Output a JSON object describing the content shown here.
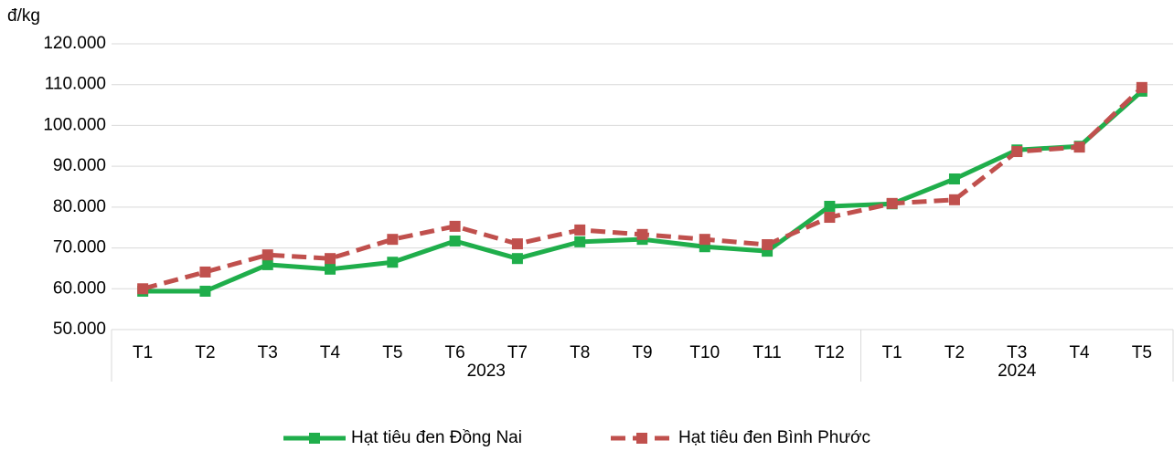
{
  "chart_data": {
    "type": "line",
    "y_axis_label": "đ/kg",
    "category_groups": [
      {
        "name": "2023",
        "categories": [
          "T1",
          "T2",
          "T3",
          "T4",
          "T5",
          "T6",
          "T7",
          "T8",
          "T9",
          "T10",
          "T11",
          "T12"
        ]
      },
      {
        "name": "2024",
        "categories": [
          "T1",
          "T2",
          "T3",
          "T4",
          "T5"
        ]
      }
    ],
    "series": [
      {
        "name": "Hạt tiêu đen Đồng Nai",
        "color": "#1fae4b",
        "dash": false,
        "values": [
          59400,
          59400,
          65900,
          64800,
          66500,
          71700,
          67400,
          71500,
          72100,
          70300,
          69200,
          80200,
          80800,
          86900,
          94000,
          94900,
          108400
        ]
      },
      {
        "name": "Hạt tiêu đen Bình Phước",
        "color": "#c0504d",
        "dash": true,
        "values": [
          60000,
          64100,
          68300,
          67400,
          72100,
          75300,
          71000,
          74400,
          73300,
          72100,
          70800,
          77500,
          80900,
          81800,
          93600,
          94700,
          109300
        ]
      }
    ],
    "ylim": [
      50000,
      120000
    ],
    "yticks": [
      {
        "value": 50000,
        "label": "50.000"
      },
      {
        "value": 60000,
        "label": "60.000"
      },
      {
        "value": 70000,
        "label": "70.000"
      },
      {
        "value": 80000,
        "label": "80.000"
      },
      {
        "value": 90000,
        "label": "90.000"
      },
      {
        "value": 100000,
        "label": "100.000"
      },
      {
        "value": 110000,
        "label": "110.000"
      },
      {
        "value": 120000,
        "label": "120.000"
      }
    ],
    "grid": true,
    "legend": "bottom"
  }
}
